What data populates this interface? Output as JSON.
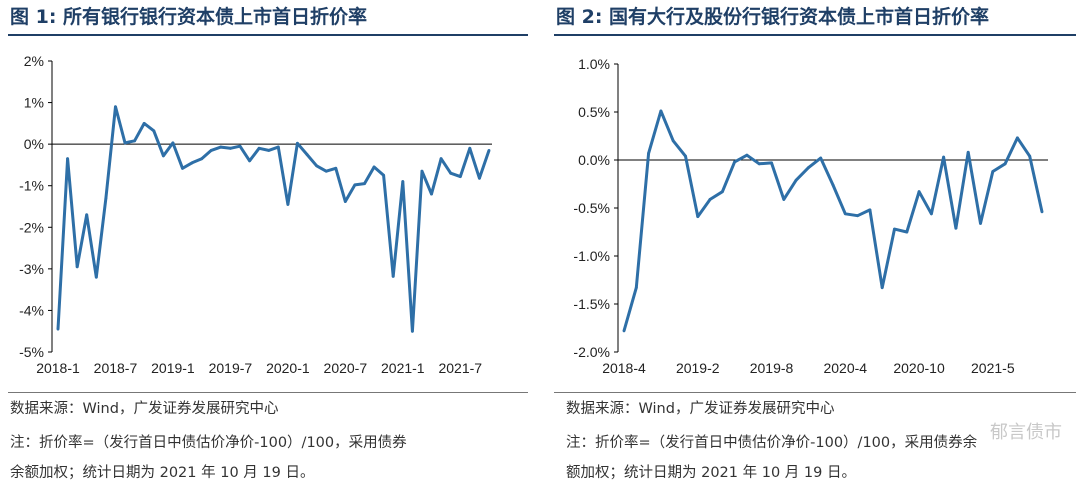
{
  "watermark": "郁言债市",
  "panels": [
    {
      "title": "图 1: 所有银行银行资本债上市首日折价率",
      "source": "数据来源：Wind，广发证券发展研究中心",
      "note_line1": "注：折价率=（发行首日中债估价净价-100）/100，采用债券",
      "note_line2": "余额加权；统计日期为 2021 年 10 月 19 日。",
      "chart_data": {
        "type": "line",
        "series": [
          {
            "name": "所有银行银行资本债上市首日折价率",
            "color": "#2e6fa7",
            "values": [
              -4.45,
              -0.35,
              -2.95,
              -1.7,
              -3.2,
              -1.3,
              0.9,
              0.03,
              0.08,
              0.5,
              0.32,
              -0.28,
              0.03,
              -0.58,
              -0.45,
              -0.35,
              -0.15,
              -0.07,
              -0.1,
              -0.05,
              -0.4,
              -0.1,
              -0.15,
              -0.07,
              -1.45,
              0.02,
              -0.25,
              -0.52,
              -0.65,
              -0.58,
              -1.38,
              -0.98,
              -0.95,
              -0.55,
              -0.75,
              -3.18,
              -0.9,
              -4.5,
              -0.65,
              -1.2,
              -0.35,
              -0.7,
              -0.78,
              -0.1,
              -0.82,
              -0.15
            ]
          }
        ],
        "ylim": [
          -5,
          2
        ],
        "yticks": [
          -5,
          -4,
          -3,
          -2,
          -1,
          0,
          1,
          2
        ],
        "ytick_labels": [
          "-5%",
          "-4%",
          "-3%",
          "-2%",
          "-1%",
          "0%",
          "1%",
          "2%"
        ],
        "x_tick_labels": [
          "2018-1",
          "2018-7",
          "2019-1",
          "2019-7",
          "2020-1",
          "2020-7",
          "2021-1",
          "2021-7"
        ],
        "x_tick_positions": [
          0,
          6,
          12,
          18,
          24,
          30,
          36,
          42
        ],
        "n_points": 46
      }
    },
    {
      "title": "图 2: 国有大行及股份行银行资本债上市首日折价率",
      "source": "数据来源：Wind，广发证券发展研究中心",
      "note_line1": "注：折价率=（发行首日中债估价净价-100）/100，采用债券余",
      "note_line2": "额加权；统计日期为 2021 年 10 月 19 日。",
      "chart_data": {
        "type": "line",
        "series": [
          {
            "name": "国有大行及股份行银行资本债上市首日折价率",
            "color": "#2e6fa7",
            "values": [
              -1.78,
              -1.33,
              0.07,
              0.51,
              0.2,
              0.04,
              -0.59,
              -0.41,
              -0.33,
              -0.02,
              0.05,
              -0.04,
              -0.03,
              -0.41,
              -0.21,
              -0.08,
              0.02,
              -0.26,
              -0.56,
              -0.58,
              -0.52,
              -1.33,
              -0.72,
              -0.75,
              -0.33,
              -0.56,
              0.03,
              -0.71,
              0.08,
              -0.66,
              -0.12,
              -0.04,
              0.23,
              0.04,
              -0.54
            ]
          }
        ],
        "ylim": [
          -2,
          1
        ],
        "yticks": [
          -2,
          -1.5,
          -1,
          -0.5,
          0,
          0.5,
          1
        ],
        "ytick_labels": [
          "-2.0%",
          "-1.5%",
          "-1.0%",
          "-0.5%",
          "0.0%",
          "0.5%",
          "1.0%"
        ],
        "x_tick_labels": [
          "2018-4",
          "2019-2",
          "2019-8",
          "2020-4",
          "2020-10",
          "2021-5"
        ],
        "x_tick_positions": [
          0,
          6,
          12,
          18,
          24,
          30
        ],
        "n_points": 35
      }
    }
  ]
}
